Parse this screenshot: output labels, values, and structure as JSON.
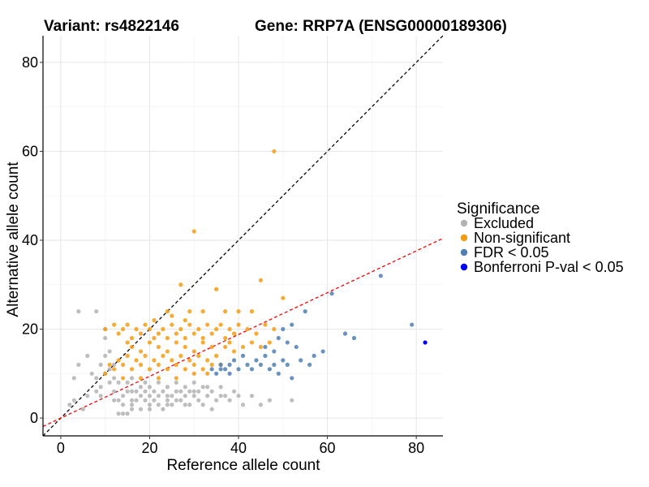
{
  "chart_data": {
    "type": "scatter",
    "title_left": "Variant: rs4822146",
    "title_right": "Gene: RRP7A (ENSG00000189306)",
    "xlabel": "Reference allele count",
    "ylabel": "Alternative allele count",
    "xlim": [
      -4,
      86
    ],
    "ylim": [
      -4,
      86
    ],
    "xticks": [
      0,
      20,
      40,
      60,
      80
    ],
    "yticks": [
      0,
      20,
      40,
      60,
      80
    ],
    "grid": true,
    "legend": {
      "title": "Significance",
      "position": "right",
      "entries": [
        {
          "label": "Excluded",
          "color": "#b3b3b3"
        },
        {
          "label": "Non-significant",
          "color": "#f39c12"
        },
        {
          "label": "FDR < 0.05",
          "color": "#4f7fb3"
        },
        {
          "label": "Bonferroni P-val < 0.05",
          "color": "#0000ff"
        }
      ]
    },
    "reference_lines": [
      {
        "name": "identity",
        "slope": 1.0,
        "intercept": 0,
        "color": "#000000",
        "dash": "dashed"
      },
      {
        "name": "fit",
        "slope": 0.47,
        "intercept": 0,
        "color": "#ff0000",
        "dash": "dashed"
      }
    ],
    "series": [
      {
        "name": "Excluded",
        "color": "#b3b3b3",
        "points": [
          [
            4,
            24
          ],
          [
            8,
            24
          ],
          [
            4,
            12
          ],
          [
            3,
            9
          ],
          [
            3,
            4
          ],
          [
            2,
            3
          ],
          [
            5,
            2
          ],
          [
            6,
            5
          ],
          [
            8,
            6
          ],
          [
            9,
            5
          ],
          [
            9,
            7
          ],
          [
            10,
            10
          ],
          [
            10,
            14
          ],
          [
            10,
            18
          ],
          [
            10,
            20
          ],
          [
            11,
            15
          ],
          [
            11,
            8
          ],
          [
            12,
            4
          ],
          [
            12,
            6
          ],
          [
            12,
            12
          ],
          [
            13,
            4
          ],
          [
            13,
            8
          ],
          [
            13,
            1
          ],
          [
            14,
            1
          ],
          [
            14,
            5
          ],
          [
            15,
            1
          ],
          [
            15,
            6
          ],
          [
            15,
            8
          ],
          [
            16,
            6
          ],
          [
            16,
            3
          ],
          [
            16,
            9
          ],
          [
            17,
            4
          ],
          [
            17,
            6
          ],
          [
            18,
            2
          ],
          [
            18,
            5
          ],
          [
            18,
            7
          ],
          [
            19,
            6
          ],
          [
            19,
            8
          ],
          [
            20,
            3
          ],
          [
            20,
            5
          ],
          [
            20,
            7
          ],
          [
            21,
            4
          ],
          [
            21,
            6
          ],
          [
            22,
            5
          ],
          [
            22,
            8
          ],
          [
            23,
            2
          ],
          [
            23,
            6
          ],
          [
            24,
            4
          ],
          [
            24,
            7
          ],
          [
            25,
            3
          ],
          [
            25,
            5
          ],
          [
            26,
            6
          ],
          [
            26,
            8
          ],
          [
            27,
            4
          ],
          [
            28,
            5
          ],
          [
            28,
            7
          ],
          [
            29,
            3
          ],
          [
            29,
            6
          ],
          [
            30,
            5
          ],
          [
            30,
            8
          ],
          [
            31,
            4
          ],
          [
            31,
            6
          ],
          [
            32,
            7
          ],
          [
            33,
            5
          ],
          [
            34,
            2
          ],
          [
            34,
            6
          ],
          [
            35,
            4
          ],
          [
            36,
            7
          ],
          [
            37,
            5
          ],
          [
            38,
            4
          ],
          [
            40,
            5
          ],
          [
            41,
            3
          ],
          [
            47,
            4
          ],
          [
            52,
            4
          ],
          [
            6,
            14
          ],
          [
            7,
            10
          ],
          [
            8,
            9
          ],
          [
            9,
            12
          ],
          [
            14,
            3
          ],
          [
            16,
            4
          ],
          [
            19,
            4
          ],
          [
            22,
            3
          ],
          [
            24,
            5
          ],
          [
            27,
            6
          ],
          [
            30,
            6
          ],
          [
            33,
            7
          ],
          [
            36,
            5
          ],
          [
            39,
            6
          ],
          [
            43,
            5
          ],
          [
            45,
            3
          ],
          [
            32,
            3
          ],
          [
            28,
            3
          ],
          [
            24,
            3
          ],
          [
            20,
            2
          ],
          [
            16,
            2
          ],
          [
            11,
            11
          ],
          [
            12,
            9
          ],
          [
            26,
            4
          ]
        ]
      },
      {
        "name": "Non-significant",
        "color": "#f39c12",
        "points": [
          [
            48,
            60
          ],
          [
            30,
            42
          ],
          [
            27,
            30
          ],
          [
            35,
            29
          ],
          [
            45,
            31
          ],
          [
            24,
            24
          ],
          [
            29,
            24
          ],
          [
            32,
            24
          ],
          [
            37,
            24
          ],
          [
            40,
            24
          ],
          [
            43,
            24
          ],
          [
            10,
            20
          ],
          [
            12,
            21
          ],
          [
            13,
            19
          ],
          [
            14,
            20
          ],
          [
            15,
            21
          ],
          [
            16,
            18
          ],
          [
            17,
            20
          ],
          [
            18,
            19
          ],
          [
            19,
            21
          ],
          [
            20,
            20
          ],
          [
            21,
            18
          ],
          [
            22,
            19
          ],
          [
            23,
            20
          ],
          [
            24,
            18
          ],
          [
            25,
            21
          ],
          [
            26,
            19
          ],
          [
            27,
            20
          ],
          [
            28,
            18
          ],
          [
            29,
            21
          ],
          [
            30,
            19
          ],
          [
            31,
            20
          ],
          [
            32,
            18
          ],
          [
            33,
            21
          ],
          [
            34,
            19
          ],
          [
            35,
            20
          ],
          [
            36,
            21
          ],
          [
            37,
            18
          ],
          [
            38,
            20
          ],
          [
            39,
            19
          ],
          [
            40,
            21
          ],
          [
            42,
            20
          ],
          [
            44,
            19
          ],
          [
            46,
            21
          ],
          [
            48,
            20
          ],
          [
            12,
            11
          ],
          [
            13,
            13
          ],
          [
            14,
            12
          ],
          [
            15,
            14
          ],
          [
            16,
            11
          ],
          [
            17,
            13
          ],
          [
            18,
            12
          ],
          [
            19,
            14
          ],
          [
            20,
            11
          ],
          [
            21,
            13
          ],
          [
            22,
            12
          ],
          [
            23,
            14
          ],
          [
            24,
            11
          ],
          [
            25,
            13
          ],
          [
            26,
            12
          ],
          [
            27,
            14
          ],
          [
            28,
            11
          ],
          [
            29,
            13
          ],
          [
            30,
            12
          ],
          [
            31,
            14
          ],
          [
            32,
            11
          ],
          [
            33,
            13
          ],
          [
            34,
            12
          ],
          [
            35,
            14
          ],
          [
            36,
            12
          ],
          [
            37,
            16
          ],
          [
            38,
            17
          ],
          [
            39,
            15
          ],
          [
            41,
            16
          ],
          [
            43,
            17
          ],
          [
            45,
            16
          ],
          [
            47,
            17
          ],
          [
            50,
            27
          ],
          [
            15,
            17
          ],
          [
            16,
            16
          ],
          [
            18,
            15
          ],
          [
            20,
            17
          ],
          [
            22,
            16
          ],
          [
            24,
            15
          ],
          [
            26,
            17
          ],
          [
            28,
            16
          ],
          [
            30,
            15
          ],
          [
            32,
            17
          ],
          [
            34,
            16
          ],
          [
            10,
            10
          ],
          [
            11,
            12
          ],
          [
            14,
            9
          ],
          [
            18,
            9
          ],
          [
            22,
            9
          ],
          [
            26,
            9
          ],
          [
            30,
            10
          ],
          [
            33,
            10
          ],
          [
            21,
            22
          ],
          [
            25,
            23
          ],
          [
            28,
            22
          ]
        ]
      },
      {
        "name": "FDR < 0.05",
        "color": "#4f7fb3",
        "points": [
          [
            72,
            32
          ],
          [
            61,
            28
          ],
          [
            55,
            24
          ],
          [
            79,
            21
          ],
          [
            64,
            19
          ],
          [
            66,
            18
          ],
          [
            52,
            21
          ],
          [
            50,
            20
          ],
          [
            49,
            18
          ],
          [
            51,
            17
          ],
          [
            53,
            16
          ],
          [
            48,
            15
          ],
          [
            46,
            14
          ],
          [
            44,
            13
          ],
          [
            42,
            12
          ],
          [
            40,
            11
          ],
          [
            38,
            10
          ],
          [
            37,
            11
          ],
          [
            36,
            12
          ],
          [
            35,
            10
          ],
          [
            34,
            11
          ],
          [
            45,
            12
          ],
          [
            47,
            11
          ],
          [
            49,
            10
          ],
          [
            51,
            12
          ],
          [
            54,
            13
          ],
          [
            57,
            14
          ],
          [
            59,
            15
          ],
          [
            56,
            12
          ],
          [
            52,
            9
          ],
          [
            43,
            11
          ],
          [
            41,
            14
          ],
          [
            39,
            13
          ],
          [
            46,
            16
          ],
          [
            50,
            13
          ],
          [
            48,
            12
          ],
          [
            36,
            11
          ],
          [
            38,
            12
          ]
        ]
      },
      {
        "name": "Bonferroni P-val < 0.05",
        "color": "#0000ff",
        "points": [
          [
            82,
            17
          ]
        ]
      }
    ]
  }
}
